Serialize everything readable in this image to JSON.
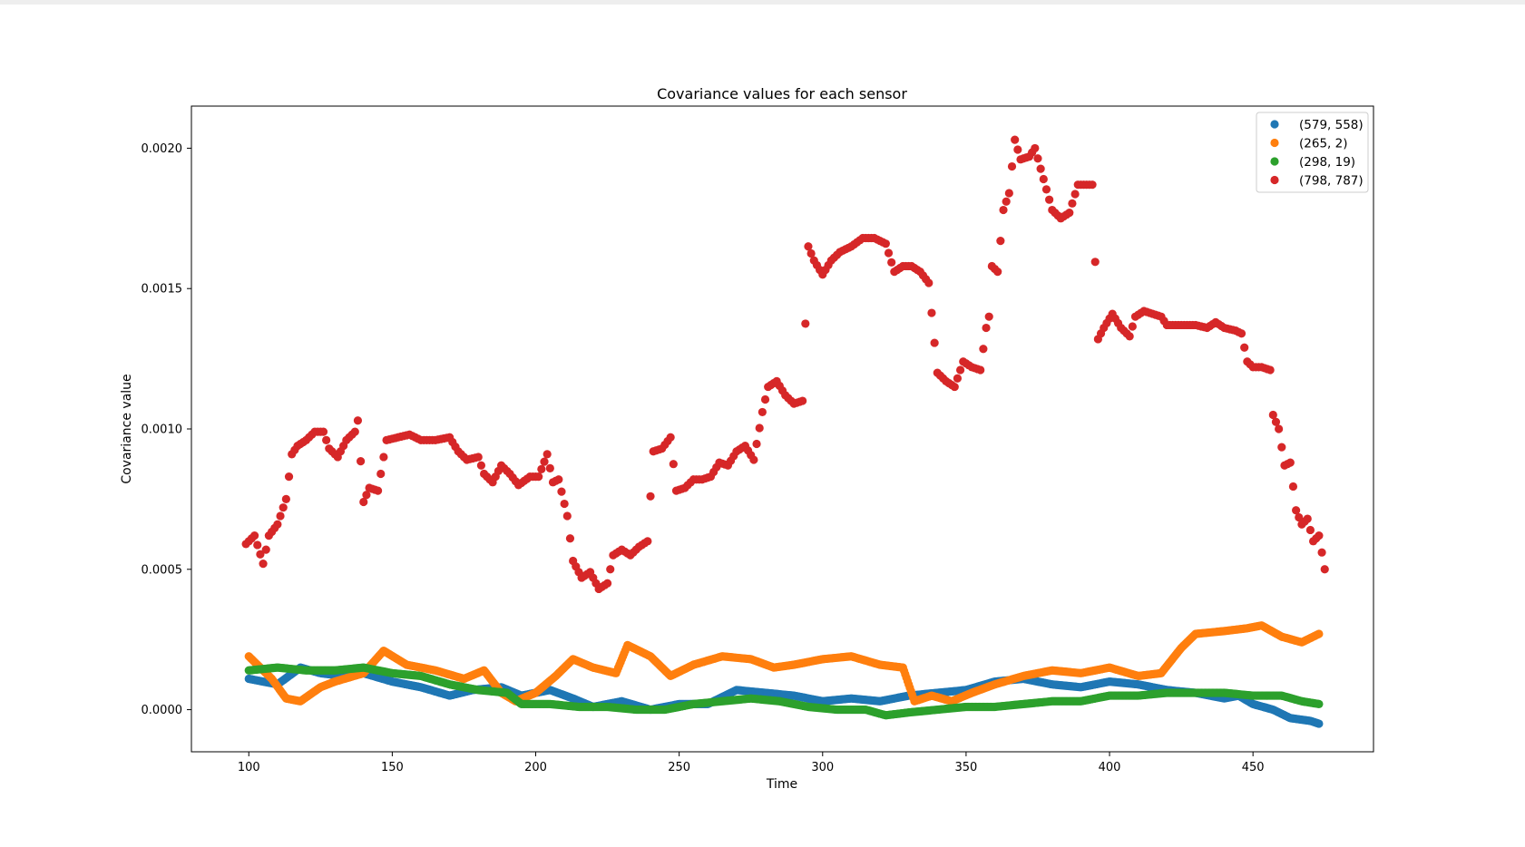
{
  "chart_data": {
    "type": "scatter",
    "title": "Covariance values for each sensor",
    "xlabel": "Time",
    "ylabel": "Covariance value",
    "xlim": [
      80,
      492
    ],
    "ylim": [
      -0.00015,
      0.00215
    ],
    "xticks": [
      100,
      150,
      200,
      250,
      300,
      350,
      400,
      450
    ],
    "xtick_labels": [
      "100",
      "150",
      "200",
      "250",
      "300",
      "350",
      "400",
      "450"
    ],
    "yticks": [
      0.0,
      0.0005,
      0.001,
      0.0015,
      0.002
    ],
    "ytick_labels": [
      "0.0000",
      "0.0005",
      "0.0010",
      "0.0015",
      "0.0020"
    ],
    "grid": false,
    "legend_position": "top-right",
    "colors": {
      "frame": "#000000",
      "background": "#ffffff"
    },
    "series": [
      {
        "name": "(579, 558)",
        "color": "#1f77b4",
        "points": [
          [
            100,
            0.00011
          ],
          [
            110,
            9e-05
          ],
          [
            118,
            0.00015
          ],
          [
            125,
            0.00013
          ],
          [
            133,
            0.00012
          ],
          [
            140,
            0.00013
          ],
          [
            150,
            0.0001
          ],
          [
            160,
            8e-05
          ],
          [
            170,
            5e-05
          ],
          [
            178,
            7e-05
          ],
          [
            188,
            8e-05
          ],
          [
            195,
            5e-05
          ],
          [
            205,
            7e-05
          ],
          [
            213,
            4e-05
          ],
          [
            220,
            1e-05
          ],
          [
            230,
            3e-05
          ],
          [
            240,
            0.0
          ],
          [
            250,
            2e-05
          ],
          [
            260,
            2e-05
          ],
          [
            270,
            7e-05
          ],
          [
            280,
            6e-05
          ],
          [
            290,
            5e-05
          ],
          [
            300,
            3e-05
          ],
          [
            310,
            4e-05
          ],
          [
            320,
            3e-05
          ],
          [
            330,
            5e-05
          ],
          [
            340,
            6e-05
          ],
          [
            350,
            7e-05
          ],
          [
            360,
            0.0001
          ],
          [
            370,
            0.00011
          ],
          [
            380,
            9e-05
          ],
          [
            390,
            8e-05
          ],
          [
            400,
            0.0001
          ],
          [
            410,
            9e-05
          ],
          [
            420,
            7e-05
          ],
          [
            430,
            6e-05
          ],
          [
            440,
            4e-05
          ],
          [
            445,
            5e-05
          ],
          [
            450,
            2e-05
          ],
          [
            457,
            0.0
          ],
          [
            463,
            -3e-05
          ],
          [
            470,
            -4e-05
          ],
          [
            473,
            -5e-05
          ]
        ]
      },
      {
        "name": "(265, 2)",
        "color": "#ff7f0e",
        "points": [
          [
            100,
            0.00019
          ],
          [
            108,
            0.00011
          ],
          [
            113,
            4e-05
          ],
          [
            118,
            3e-05
          ],
          [
            125,
            8e-05
          ],
          [
            130,
            0.0001
          ],
          [
            140,
            0.00013
          ],
          [
            147,
            0.00021
          ],
          [
            155,
            0.00016
          ],
          [
            165,
            0.00014
          ],
          [
            175,
            0.00011
          ],
          [
            182,
            0.00014
          ],
          [
            188,
            6e-05
          ],
          [
            193,
            3e-05
          ],
          [
            200,
            6e-05
          ],
          [
            207,
            0.00012
          ],
          [
            213,
            0.00018
          ],
          [
            220,
            0.00015
          ],
          [
            228,
            0.00013
          ],
          [
            232,
            0.00023
          ],
          [
            240,
            0.00019
          ],
          [
            247,
            0.00012
          ],
          [
            255,
            0.00016
          ],
          [
            265,
            0.00019
          ],
          [
            275,
            0.00018
          ],
          [
            283,
            0.00015
          ],
          [
            290,
            0.00016
          ],
          [
            300,
            0.00018
          ],
          [
            310,
            0.00019
          ],
          [
            320,
            0.00016
          ],
          [
            328,
            0.00015
          ],
          [
            332,
            3e-05
          ],
          [
            338,
            5e-05
          ],
          [
            345,
            3e-05
          ],
          [
            352,
            6e-05
          ],
          [
            360,
            9e-05
          ],
          [
            370,
            0.00012
          ],
          [
            380,
            0.00014
          ],
          [
            390,
            0.00013
          ],
          [
            400,
            0.00015
          ],
          [
            410,
            0.00012
          ],
          [
            418,
            0.00013
          ],
          [
            425,
            0.00022
          ],
          [
            430,
            0.00027
          ],
          [
            440,
            0.00028
          ],
          [
            448,
            0.00029
          ],
          [
            453,
            0.0003
          ],
          [
            460,
            0.00026
          ],
          [
            467,
            0.00024
          ],
          [
            473,
            0.00027
          ]
        ]
      },
      {
        "name": "(298, 19)",
        "color": "#2ca02c",
        "points": [
          [
            100,
            0.00014
          ],
          [
            110,
            0.00015
          ],
          [
            120,
            0.00014
          ],
          [
            130,
            0.00014
          ],
          [
            140,
            0.00015
          ],
          [
            150,
            0.00013
          ],
          [
            160,
            0.00012
          ],
          [
            170,
            9e-05
          ],
          [
            180,
            7e-05
          ],
          [
            190,
            6e-05
          ],
          [
            195,
            2e-05
          ],
          [
            205,
            2e-05
          ],
          [
            215,
            1e-05
          ],
          [
            225,
            1e-05
          ],
          [
            235,
            0.0
          ],
          [
            245,
            0.0
          ],
          [
            255,
            2e-05
          ],
          [
            265,
            3e-05
          ],
          [
            275,
            4e-05
          ],
          [
            285,
            3e-05
          ],
          [
            295,
            1e-05
          ],
          [
            305,
            0.0
          ],
          [
            315,
            0.0
          ],
          [
            322,
            -2e-05
          ],
          [
            330,
            -1e-05
          ],
          [
            340,
            0.0
          ],
          [
            350,
            1e-05
          ],
          [
            360,
            1e-05
          ],
          [
            370,
            2e-05
          ],
          [
            380,
            3e-05
          ],
          [
            390,
            3e-05
          ],
          [
            400,
            5e-05
          ],
          [
            410,
            5e-05
          ],
          [
            420,
            6e-05
          ],
          [
            430,
            6e-05
          ],
          [
            440,
            6e-05
          ],
          [
            450,
            5e-05
          ],
          [
            460,
            5e-05
          ],
          [
            467,
            3e-05
          ],
          [
            473,
            2e-05
          ]
        ]
      },
      {
        "name": "(798, 787)",
        "color": "#d62728",
        "points": [
          [
            99,
            0.00059
          ],
          [
            102,
            0.00062
          ],
          [
            105,
            0.00052
          ],
          [
            107,
            0.00062
          ],
          [
            110,
            0.00066
          ],
          [
            113,
            0.00075
          ],
          [
            115,
            0.00091
          ],
          [
            117,
            0.00094
          ],
          [
            120,
            0.00096
          ],
          [
            123,
            0.00099
          ],
          [
            126,
            0.00099
          ],
          [
            128,
            0.00093
          ],
          [
            131,
            0.0009
          ],
          [
            134,
            0.00096
          ],
          [
            137,
            0.00099
          ],
          [
            138,
            0.00103
          ],
          [
            140,
            0.00074
          ],
          [
            142,
            0.00079
          ],
          [
            145,
            0.00078
          ],
          [
            148,
            0.00096
          ],
          [
            152,
            0.00097
          ],
          [
            156,
            0.00098
          ],
          [
            160,
            0.00096
          ],
          [
            165,
            0.00096
          ],
          [
            170,
            0.00097
          ],
          [
            173,
            0.00092
          ],
          [
            176,
            0.00089
          ],
          [
            180,
            0.0009
          ],
          [
            182,
            0.00084
          ],
          [
            185,
            0.00081
          ],
          [
            188,
            0.00087
          ],
          [
            191,
            0.00084
          ],
          [
            194,
            0.0008
          ],
          [
            198,
            0.00083
          ],
          [
            201,
            0.00083
          ],
          [
            204,
            0.00091
          ],
          [
            206,
            0.00081
          ],
          [
            208,
            0.00082
          ],
          [
            211,
            0.00069
          ],
          [
            213,
            0.00053
          ],
          [
            216,
            0.00047
          ],
          [
            219,
            0.00049
          ],
          [
            222,
            0.00043
          ],
          [
            225,
            0.00045
          ],
          [
            227,
            0.00055
          ],
          [
            230,
            0.00057
          ],
          [
            233,
            0.00055
          ],
          [
            236,
            0.00058
          ],
          [
            239,
            0.0006
          ],
          [
            241,
            0.00092
          ],
          [
            244,
            0.00093
          ],
          [
            247,
            0.00097
          ],
          [
            249,
            0.00078
          ],
          [
            252,
            0.00079
          ],
          [
            255,
            0.00082
          ],
          [
            258,
            0.00082
          ],
          [
            261,
            0.00083
          ],
          [
            264,
            0.00088
          ],
          [
            267,
            0.00087
          ],
          [
            270,
            0.00092
          ],
          [
            273,
            0.00094
          ],
          [
            276,
            0.00089
          ],
          [
            279,
            0.00106
          ],
          [
            281,
            0.00115
          ],
          [
            284,
            0.00117
          ],
          [
            287,
            0.00112
          ],
          [
            290,
            0.00109
          ],
          [
            293,
            0.0011
          ],
          [
            295,
            0.00165
          ],
          [
            297,
            0.0016
          ],
          [
            300,
            0.00155
          ],
          [
            303,
            0.0016
          ],
          [
            306,
            0.00163
          ],
          [
            310,
            0.00165
          ],
          [
            314,
            0.00168
          ],
          [
            318,
            0.00168
          ],
          [
            322,
            0.00166
          ],
          [
            325,
            0.00156
          ],
          [
            328,
            0.00158
          ],
          [
            331,
            0.00158
          ],
          [
            334,
            0.00156
          ],
          [
            337,
            0.00152
          ],
          [
            340,
            0.0012
          ],
          [
            343,
            0.00117
          ],
          [
            346,
            0.00115
          ],
          [
            349,
            0.00124
          ],
          [
            352,
            0.00122
          ],
          [
            355,
            0.00121
          ],
          [
            357,
            0.00136
          ],
          [
            358,
            0.0014
          ],
          [
            359,
            0.00158
          ],
          [
            361,
            0.00156
          ],
          [
            363,
            0.00178
          ],
          [
            365,
            0.00184
          ],
          [
            367,
            0.00203
          ],
          [
            369,
            0.00196
          ],
          [
            372,
            0.00197
          ],
          [
            374,
            0.002
          ],
          [
            377,
            0.00189
          ],
          [
            380,
            0.00178
          ],
          [
            383,
            0.00175
          ],
          [
            386,
            0.00177
          ],
          [
            389,
            0.00187
          ],
          [
            392,
            0.00187
          ],
          [
            394,
            0.00187
          ],
          [
            396,
            0.00132
          ],
          [
            398,
            0.00136
          ],
          [
            401,
            0.00141
          ],
          [
            404,
            0.00136
          ],
          [
            407,
            0.00133
          ],
          [
            409,
            0.0014
          ],
          [
            412,
            0.00142
          ],
          [
            415,
            0.00141
          ],
          [
            418,
            0.0014
          ],
          [
            420,
            0.00137
          ],
          [
            423,
            0.00137
          ],
          [
            426,
            0.00137
          ],
          [
            430,
            0.00137
          ],
          [
            434,
            0.00136
          ],
          [
            437,
            0.00138
          ],
          [
            440,
            0.00136
          ],
          [
            444,
            0.00135
          ],
          [
            446,
            0.00134
          ],
          [
            448,
            0.00124
          ],
          [
            450,
            0.00122
          ],
          [
            453,
            0.00122
          ],
          [
            456,
            0.00121
          ],
          [
            457,
            0.00105
          ],
          [
            459,
            0.001
          ],
          [
            461,
            0.00087
          ],
          [
            463,
            0.00088
          ],
          [
            465,
            0.00071
          ],
          [
            467,
            0.00066
          ],
          [
            469,
            0.00068
          ],
          [
            471,
            0.0006
          ],
          [
            473,
            0.00062
          ],
          [
            475,
            0.0005
          ]
        ]
      }
    ]
  }
}
